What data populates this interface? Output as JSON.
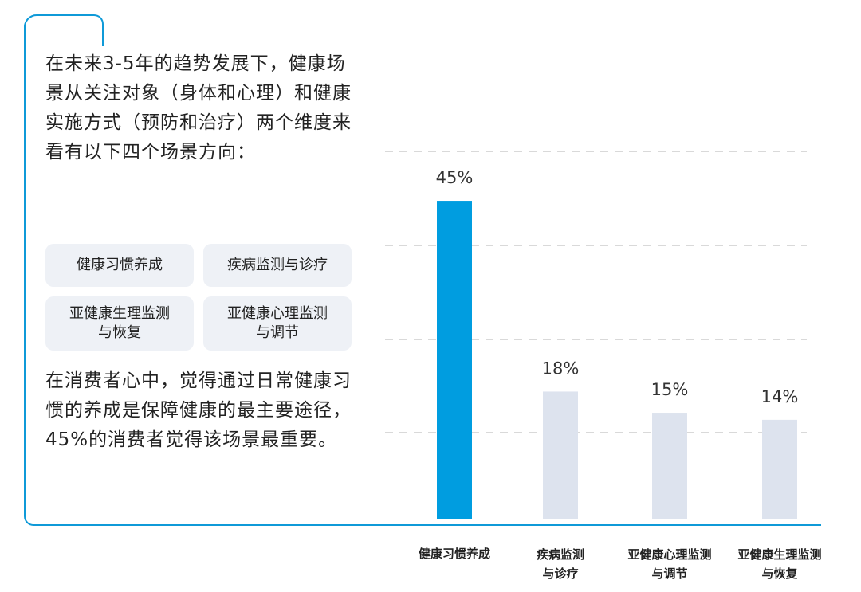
{
  "intro_text": "在未来3-5年的趋势发展下，健康场景从关注对象（身体和心理）和健康实施方式（预防和治疗）两个维度来看有以下四个场景方向：",
  "tags": [
    "健康习惯养成",
    "疾病监测与诊疗",
    "亚健康生理监测\n与恢复",
    "亚健康心理监测\n与调节"
  ],
  "summary_text": "在消费者心中，觉得通过日常健康习惯的养成是保障健康的最主要途径，45%的消费者觉得该场景最重要。",
  "colors": {
    "accent": "#0f9ad8",
    "bar_highlight": "#009de0",
    "bar_default": "#dde3ee",
    "grid": "#d9d9d9",
    "tag_bg": "#eef1f6"
  },
  "chart_data": {
    "type": "bar",
    "categories": [
      [
        "健康习惯养成"
      ],
      [
        "疾病监测",
        "与诊疗"
      ],
      [
        "亚健康心理监测",
        "与调节"
      ],
      [
        "亚健康生理监测",
        "与恢复"
      ]
    ],
    "values": [
      45,
      18,
      15,
      14
    ],
    "value_labels": [
      "45%",
      "18%",
      "15%",
      "14%"
    ],
    "highlight_index": 0,
    "ylim": [
      0,
      52
    ],
    "grid": true,
    "title": "",
    "xlabel": "",
    "ylabel": ""
  }
}
